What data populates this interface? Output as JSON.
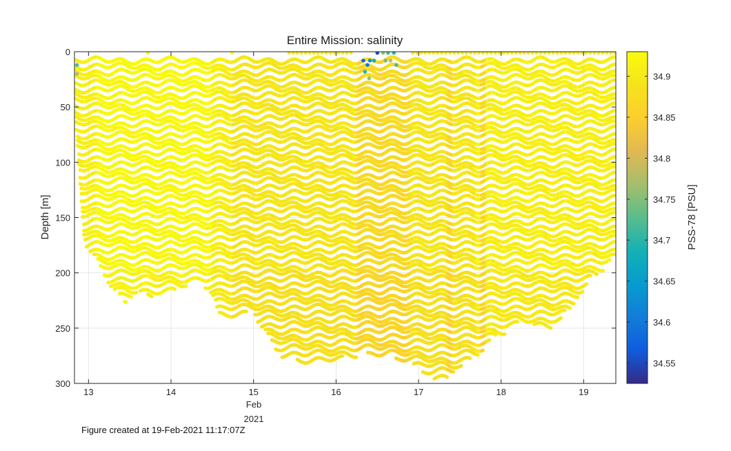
{
  "chart_data": {
    "type": "scatter",
    "title": "Entire Mission: salinity",
    "ylabel": "Depth [m]",
    "xlabel": "",
    "x_tick_labels": [
      "13",
      "14",
      "15",
      "16",
      "17",
      "18",
      "19"
    ],
    "x_ticks": [
      13,
      14,
      15,
      16,
      17,
      18,
      19
    ],
    "x_axis_month": "Feb",
    "x_axis_year": "2021",
    "xlim": [
      12.83,
      19.39
    ],
    "ylim": [
      0,
      300
    ],
    "y_reversed": true,
    "y_ticks": [
      0,
      50,
      100,
      150,
      200,
      250,
      300
    ],
    "y_tick_labels": [
      "0",
      "50",
      "100",
      "150",
      "200",
      "250",
      "300"
    ],
    "grid": true,
    "colorbar": {
      "label": "PSS-78 [PSU]",
      "clim": [
        34.525,
        34.93
      ],
      "ticks": [
        34.55,
        34.6,
        34.65,
        34.7,
        34.75,
        34.8,
        34.85,
        34.9
      ],
      "tick_labels": [
        "34.55",
        "34.6",
        "34.65",
        "34.7",
        "34.75",
        "34.8",
        "34.85",
        "34.9"
      ],
      "colormap": "parula"
    },
    "profile_max_depth": {
      "x": [
        12.83,
        12.95,
        13.1,
        13.3,
        13.45,
        13.6,
        13.72,
        13.85,
        14.0,
        14.15,
        14.3,
        14.45,
        14.6,
        14.8,
        15.0,
        15.15,
        15.3,
        15.5,
        15.7,
        15.9,
        16.1,
        16.3,
        16.5,
        16.7,
        16.9,
        17.1,
        17.3,
        17.5,
        17.7,
        17.9,
        18.1,
        18.3,
        18.5,
        18.7,
        18.9,
        19.1,
        19.25,
        19.39
      ],
      "depth": [
        55,
        172,
        190,
        215,
        228,
        215,
        222,
        220,
        218,
        212,
        208,
        212,
        240,
        238,
        236,
        255,
        272,
        278,
        282,
        283,
        278,
        272,
        275,
        278,
        282,
        292,
        297,
        285,
        275,
        260,
        250,
        245,
        250,
        245,
        225,
        205,
        195,
        185
      ]
    },
    "anomalies": [
      {
        "x": 16.33,
        "depth": 8,
        "value": 34.58
      },
      {
        "x": 16.38,
        "depth": 12,
        "value": 34.6
      },
      {
        "x": 16.41,
        "depth": 8,
        "value": 34.63
      },
      {
        "x": 16.46,
        "depth": 8,
        "value": 34.68
      },
      {
        "x": 16.5,
        "depth": 1,
        "value": 34.55
      },
      {
        "x": 16.35,
        "depth": 18,
        "value": 34.7
      },
      {
        "x": 16.4,
        "depth": 24,
        "value": 34.76
      },
      {
        "x": 16.57,
        "depth": 1,
        "value": 34.76
      },
      {
        "x": 16.63,
        "depth": 1,
        "value": 34.72
      },
      {
        "x": 16.6,
        "depth": 8,
        "value": 34.74
      },
      {
        "x": 16.66,
        "depth": 8,
        "value": 34.78
      },
      {
        "x": 16.7,
        "depth": 1,
        "value": 34.7
      },
      {
        "x": 16.73,
        "depth": 12,
        "value": 34.72
      },
      {
        "x": 12.86,
        "depth": 12,
        "value": 34.72
      },
      {
        "x": 12.86,
        "depth": 20,
        "value": 34.78
      }
    ]
  },
  "footer_text": "Figure created at 19-Feb-2021 11:17:07Z"
}
